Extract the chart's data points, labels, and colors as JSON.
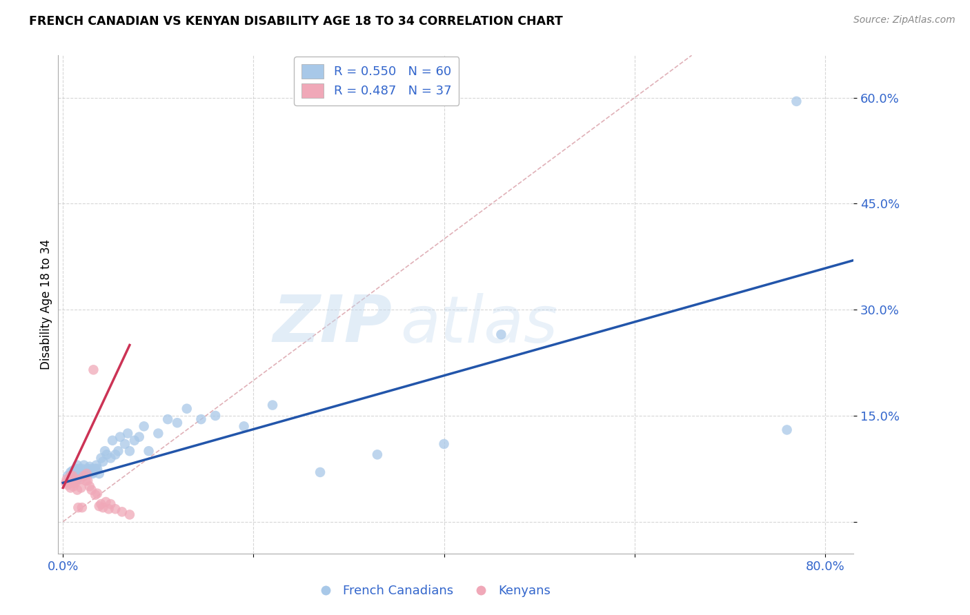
{
  "title": "FRENCH CANADIAN VS KENYAN DISABILITY AGE 18 TO 34 CORRELATION CHART",
  "source": "Source: ZipAtlas.com",
  "ylabel": "Disability Age 18 to 34",
  "xlabel_ticks": [
    "0.0%",
    "",
    "",
    "",
    "80.0%"
  ],
  "ylabel_ticks": [
    "",
    "15.0%",
    "30.0%",
    "45.0%",
    "60.0%"
  ],
  "xlim": [
    -0.005,
    0.83
  ],
  "ylim": [
    -0.045,
    0.66
  ],
  "legend_blue_label": "R = 0.550   N = 60",
  "legend_pink_label": "R = 0.487   N = 37",
  "legend_bottom_blue": "French Canadians",
  "legend_bottom_pink": "Kenyans",
  "blue_color": "#A8C8E8",
  "pink_color": "#F0A8B8",
  "blue_line_color": "#2255AA",
  "pink_line_color": "#CC3355",
  "diag_line_color": "#DDA8B0",
  "watermark_zip": "ZIP",
  "watermark_atlas": "atlas",
  "blue_scatter_x": [
    0.005,
    0.008,
    0.01,
    0.012,
    0.013,
    0.015,
    0.015,
    0.016,
    0.017,
    0.018,
    0.019,
    0.02,
    0.02,
    0.021,
    0.022,
    0.022,
    0.023,
    0.024,
    0.025,
    0.026,
    0.027,
    0.028,
    0.029,
    0.03,
    0.031,
    0.032,
    0.034,
    0.035,
    0.036,
    0.038,
    0.04,
    0.042,
    0.044,
    0.046,
    0.05,
    0.052,
    0.055,
    0.058,
    0.06,
    0.065,
    0.068,
    0.07,
    0.075,
    0.08,
    0.085,
    0.09,
    0.1,
    0.11,
    0.12,
    0.13,
    0.145,
    0.16,
    0.19,
    0.22,
    0.27,
    0.33,
    0.4,
    0.46,
    0.76,
    0.77
  ],
  "blue_scatter_y": [
    0.065,
    0.07,
    0.072,
    0.068,
    0.075,
    0.06,
    0.08,
    0.07,
    0.075,
    0.065,
    0.068,
    0.068,
    0.075,
    0.07,
    0.065,
    0.08,
    0.072,
    0.068,
    0.07,
    0.075,
    0.068,
    0.078,
    0.072,
    0.075,
    0.068,
    0.07,
    0.075,
    0.08,
    0.075,
    0.068,
    0.09,
    0.085,
    0.1,
    0.095,
    0.09,
    0.115,
    0.095,
    0.1,
    0.12,
    0.11,
    0.125,
    0.1,
    0.115,
    0.12,
    0.135,
    0.1,
    0.125,
    0.145,
    0.14,
    0.16,
    0.145,
    0.15,
    0.135,
    0.165,
    0.07,
    0.095,
    0.11,
    0.265,
    0.13,
    0.595
  ],
  "pink_scatter_x": [
    0.003,
    0.004,
    0.005,
    0.006,
    0.007,
    0.008,
    0.008,
    0.009,
    0.01,
    0.01,
    0.011,
    0.012,
    0.013,
    0.014,
    0.015,
    0.016,
    0.018,
    0.019,
    0.02,
    0.022,
    0.024,
    0.025,
    0.026,
    0.028,
    0.03,
    0.032,
    0.034,
    0.036,
    0.038,
    0.04,
    0.042,
    0.045,
    0.048,
    0.05,
    0.055,
    0.062,
    0.07
  ],
  "pink_scatter_y": [
    0.055,
    0.06,
    0.052,
    0.058,
    0.055,
    0.048,
    0.065,
    0.058,
    0.055,
    0.065,
    0.05,
    0.058,
    0.055,
    0.06,
    0.045,
    0.02,
    0.06,
    0.048,
    0.02,
    0.065,
    0.058,
    0.068,
    0.058,
    0.05,
    0.045,
    0.215,
    0.038,
    0.04,
    0.022,
    0.025,
    0.02,
    0.028,
    0.018,
    0.025,
    0.018,
    0.014,
    0.01
  ],
  "blue_trendline_x": [
    0.0,
    0.83
  ],
  "blue_trendline_y": [
    0.055,
    0.37
  ],
  "pink_trendline_x": [
    0.0,
    0.07
  ],
  "pink_trendline_y": [
    0.048,
    0.25
  ],
  "diag_line_x": [
    0.0,
    0.66
  ],
  "diag_line_y": [
    0.0,
    0.66
  ],
  "x_tick_vals": [
    0.0,
    0.2,
    0.4,
    0.6,
    0.8
  ],
  "y_tick_vals": [
    0.0,
    0.15,
    0.3,
    0.45,
    0.6
  ]
}
